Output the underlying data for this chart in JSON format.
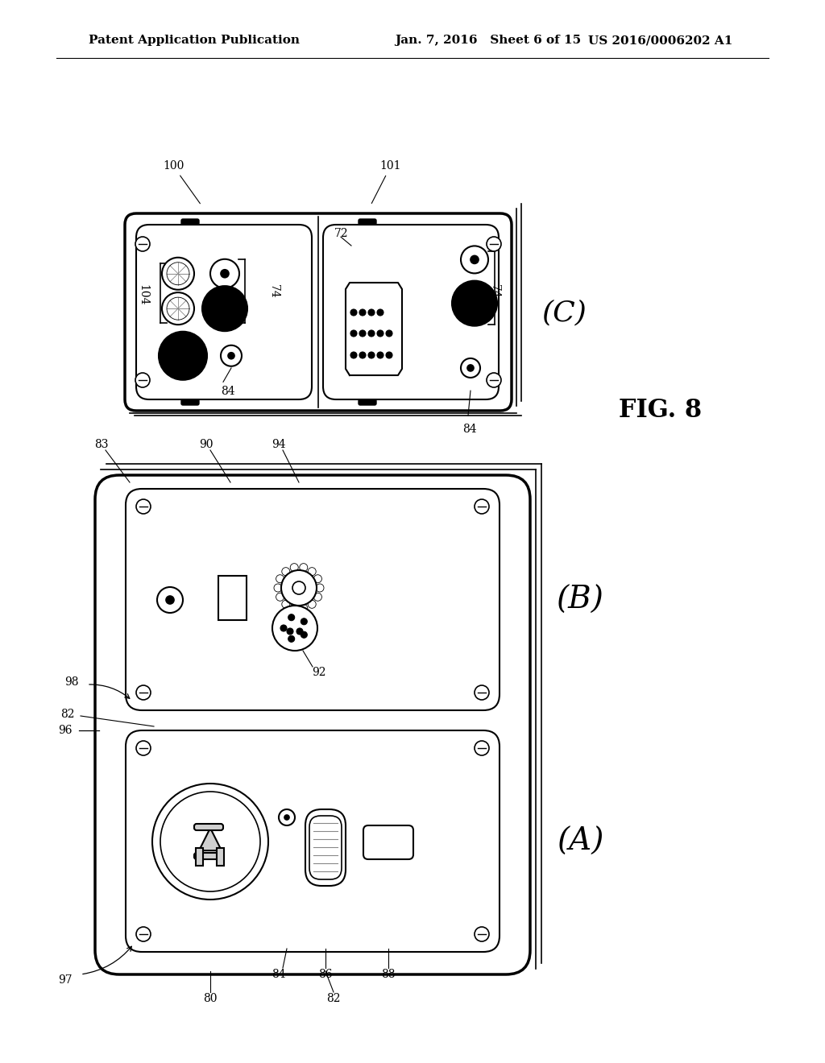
{
  "bg_color": "#ffffff",
  "line_color": "#000000",
  "header_text_left": "Patent Application Publication",
  "header_text_mid": "Jan. 7, 2016   Sheet 6 of 15",
  "header_text_right": "US 2016/0006202 A1",
  "fig_label": "FIG. 8",
  "diagram_C_label": "(C)",
  "diagram_B_label": "(B)",
  "diagram_A_label": "(A)"
}
